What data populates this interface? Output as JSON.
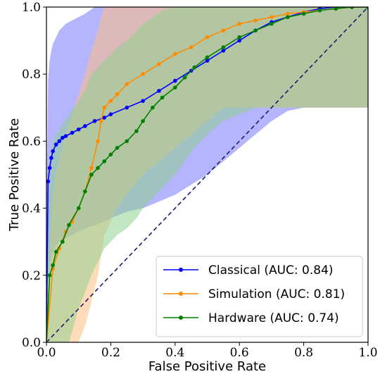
{
  "chart_data": {
    "type": "line",
    "xlabel": "False Positive Rate",
    "ylabel": "True Positive Rate",
    "xlim": [
      0.0,
      1.0
    ],
    "ylim": [
      0.0,
      1.0
    ],
    "xticks": [
      "0.0",
      "0.2",
      "0.4",
      "0.6",
      "0.8",
      "1.0"
    ],
    "yticks": [
      "0.0",
      "0.2",
      "0.4",
      "0.6",
      "0.8",
      "1.0"
    ],
    "grid": false,
    "legend_position": "lower-right",
    "diagonal": {
      "style": "dashed",
      "color": "#1a1a6e"
    },
    "series": [
      {
        "name": "Classical (AUC: 0.84)",
        "color": "#0000ff",
        "x": [
          0,
          0.005,
          0.01,
          0.015,
          0.02,
          0.03,
          0.04,
          0.05,
          0.06,
          0.08,
          0.1,
          0.12,
          0.15,
          0.18,
          0.2,
          0.25,
          0.3,
          0.35,
          0.4,
          0.45,
          0.5,
          0.55,
          0.6,
          0.65,
          0.7,
          0.75,
          0.8,
          0.85,
          0.9,
          0.95,
          1.0
        ],
        "y": [
          0,
          0.48,
          0.52,
          0.55,
          0.57,
          0.59,
          0.6,
          0.61,
          0.615,
          0.625,
          0.635,
          0.645,
          0.66,
          0.67,
          0.68,
          0.7,
          0.72,
          0.75,
          0.78,
          0.81,
          0.84,
          0.87,
          0.9,
          0.93,
          0.955,
          0.97,
          0.985,
          0.995,
          1.0,
          1.0,
          1.0
        ],
        "band_upper": [
          0.35,
          0.78,
          0.84,
          0.87,
          0.89,
          0.91,
          0.93,
          0.94,
          0.95,
          0.96,
          0.97,
          0.98,
          1.0,
          1.0,
          1.0,
          1.0,
          1.0,
          1.0,
          1.0,
          1.0,
          1.0,
          1.0,
          1.0,
          1.0,
          1.0,
          1.0,
          1.0,
          1.0,
          1.0,
          1.0,
          1.0
        ],
        "band_lower": [
          0,
          0.18,
          0.22,
          0.25,
          0.27,
          0.29,
          0.3,
          0.3,
          0.31,
          0.32,
          0.33,
          0.34,
          0.35,
          0.36,
          0.37,
          0.39,
          0.4,
          0.42,
          0.44,
          0.47,
          0.5,
          0.54,
          0.58,
          0.62,
          0.66,
          0.69,
          0.7,
          0.7,
          0.7,
          0.7,
          0.7
        ]
      },
      {
        "name": "Simulation (AUC: 0.81)",
        "color": "#ff8c00",
        "x": [
          0,
          0.02,
          0.04,
          0.06,
          0.08,
          0.1,
          0.12,
          0.14,
          0.16,
          0.17,
          0.18,
          0.2,
          0.22,
          0.25,
          0.3,
          0.35,
          0.4,
          0.45,
          0.5,
          0.55,
          0.6,
          0.65,
          0.7,
          0.75,
          0.8,
          0.85,
          0.9,
          0.95,
          1.0
        ],
        "y": [
          0,
          0.22,
          0.28,
          0.33,
          0.36,
          0.4,
          0.45,
          0.52,
          0.6,
          0.66,
          0.7,
          0.72,
          0.74,
          0.77,
          0.8,
          0.83,
          0.86,
          0.88,
          0.91,
          0.93,
          0.95,
          0.96,
          0.97,
          0.98,
          0.985,
          0.99,
          0.995,
          1.0,
          1.0
        ],
        "band_upper": [
          0.05,
          0.45,
          0.55,
          0.62,
          0.68,
          0.74,
          0.8,
          0.87,
          0.93,
          0.97,
          1.0,
          1.0,
          1.0,
          1.0,
          1.0,
          1.0,
          1.0,
          1.0,
          1.0,
          1.0,
          1.0,
          1.0,
          1.0,
          1.0,
          1.0,
          1.0,
          1.0,
          1.0,
          1.0
        ],
        "band_lower": [
          0,
          0.0,
          0.0,
          0.0,
          0.0,
          0.0,
          0.05,
          0.12,
          0.2,
          0.26,
          0.32,
          0.36,
          0.4,
          0.44,
          0.5,
          0.54,
          0.58,
          0.62,
          0.66,
          0.7,
          0.7,
          0.7,
          0.7,
          0.7,
          0.7,
          0.7,
          0.7,
          0.7,
          0.7
        ]
      },
      {
        "name": "Hardware (AUC: 0.74)",
        "color": "#008000",
        "x": [
          0,
          0.01,
          0.02,
          0.03,
          0.05,
          0.07,
          0.1,
          0.12,
          0.14,
          0.16,
          0.18,
          0.2,
          0.22,
          0.25,
          0.28,
          0.3,
          0.33,
          0.36,
          0.4,
          0.43,
          0.46,
          0.5,
          0.55,
          0.6,
          0.65,
          0.7,
          0.75,
          0.8,
          0.85,
          0.9,
          0.95,
          1.0
        ],
        "y": [
          0,
          0.2,
          0.23,
          0.27,
          0.3,
          0.35,
          0.4,
          0.45,
          0.5,
          0.52,
          0.54,
          0.56,
          0.58,
          0.6,
          0.63,
          0.66,
          0.7,
          0.73,
          0.76,
          0.79,
          0.82,
          0.85,
          0.88,
          0.91,
          0.93,
          0.95,
          0.97,
          0.98,
          0.99,
          0.995,
          1.0,
          1.0
        ],
        "band_upper": [
          0.02,
          0.55,
          0.6,
          0.62,
          0.65,
          0.68,
          0.72,
          0.75,
          0.8,
          0.82,
          0.84,
          0.86,
          0.88,
          0.9,
          0.93,
          0.95,
          0.97,
          0.99,
          1.0,
          1.0,
          1.0,
          1.0,
          1.0,
          1.0,
          1.0,
          1.0,
          1.0,
          1.0,
          1.0,
          1.0,
          1.0,
          1.0
        ],
        "band_lower": [
          0,
          0.0,
          0.0,
          0.0,
          0.0,
          0.0,
          0.1,
          0.15,
          0.2,
          0.24,
          0.28,
          0.3,
          0.32,
          0.34,
          0.37,
          0.4,
          0.43,
          0.46,
          0.5,
          0.54,
          0.58,
          0.62,
          0.66,
          0.68,
          0.7,
          0.7,
          0.7,
          0.7,
          0.7,
          0.7,
          0.7,
          0.7
        ]
      }
    ]
  }
}
